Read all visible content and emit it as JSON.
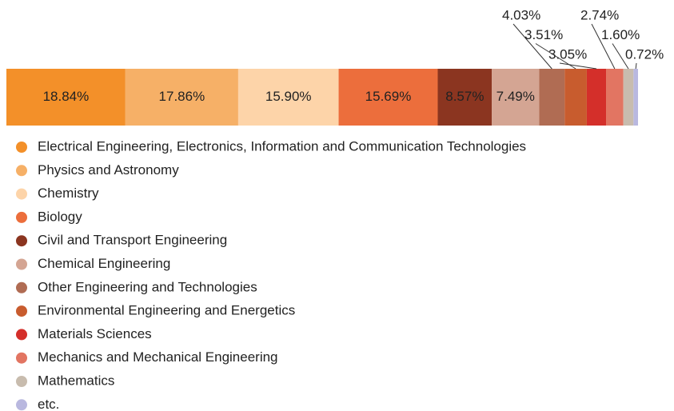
{
  "chart_data": {
    "type": "stacked-bar",
    "categories": [
      "Electrical Engineering, Electronics, Information and Communication Technologies",
      "Physics and Astronomy",
      "Chemistry",
      "Biology",
      "Civil and Transport Engineering",
      "Chemical Engineering",
      "Other Engineering and Technologies",
      "Environmental Engineering and Energetics",
      "Materials Sciences",
      "Mechanics and Mechanical Engineering",
      "Mathematics",
      "etc."
    ],
    "values": [
      18.84,
      17.86,
      15.9,
      15.69,
      8.57,
      7.49,
      4.03,
      3.51,
      3.05,
      2.74,
      1.6,
      0.72
    ],
    "value_labels": [
      "18.84%",
      "17.86%",
      "15.90%",
      "15.69%",
      "8.57%",
      "7.49%",
      "4.03%",
      "3.51%",
      "3.05%",
      "2.74%",
      "1.60%",
      "0.72%"
    ],
    "colors": [
      "#f39029",
      "#f6b067",
      "#fdd4a9",
      "#ec6e3c",
      "#8b3520",
      "#d4a593",
      "#b06c53",
      "#c85c2e",
      "#d42f2a",
      "#e27562",
      "#c8bcae",
      "#b9b8df"
    ]
  }
}
